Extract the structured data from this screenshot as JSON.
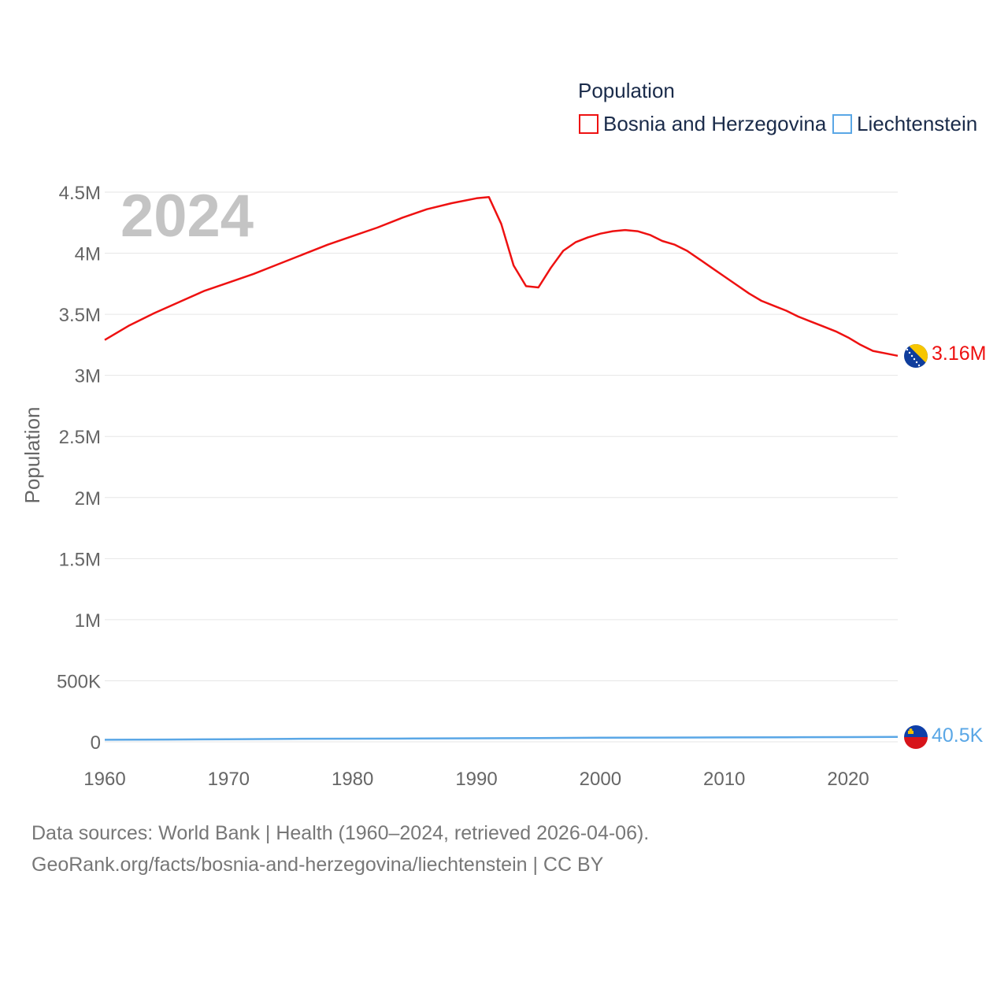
{
  "chart_data": {
    "type": "line",
    "year_label": "2024",
    "ylabel": "Population",
    "xlim": [
      1960,
      2024
    ],
    "ylim": [
      0,
      4500000
    ],
    "x_ticks": [
      1960,
      1970,
      1980,
      1990,
      2000,
      2010,
      2020
    ],
    "y_ticks": [
      {
        "value": 0,
        "label": "0"
      },
      {
        "value": 500000,
        "label": "500K"
      },
      {
        "value": 1000000,
        "label": "1M"
      },
      {
        "value": 1500000,
        "label": "1.5M"
      },
      {
        "value": 2000000,
        "label": "2M"
      },
      {
        "value": 2500000,
        "label": "2.5M"
      },
      {
        "value": 3000000,
        "label": "3M"
      },
      {
        "value": 3500000,
        "label": "3.5M"
      },
      {
        "value": 4000000,
        "label": "4M"
      },
      {
        "value": 4500000,
        "label": "4.5M"
      }
    ],
    "legend_title": "Population",
    "series": [
      {
        "name": "Bosnia and Herzegovina",
        "color": "#ee1111",
        "end_label": "3.16M",
        "flag": "bosnia-flag",
        "x": [
          1960,
          1962,
          1964,
          1966,
          1968,
          1970,
          1972,
          1974,
          1976,
          1978,
          1980,
          1982,
          1984,
          1986,
          1988,
          1990,
          1991,
          1992,
          1993,
          1994,
          1995,
          1996,
          1997,
          1998,
          1999,
          2000,
          2001,
          2002,
          2003,
          2004,
          2005,
          2006,
          2007,
          2008,
          2009,
          2010,
          2011,
          2012,
          2013,
          2014,
          2015,
          2016,
          2017,
          2018,
          2019,
          2020,
          2021,
          2022,
          2023,
          2024
        ],
        "values": [
          3290000,
          3410000,
          3510000,
          3600000,
          3690000,
          3760000,
          3830000,
          3910000,
          3990000,
          4070000,
          4140000,
          4210000,
          4290000,
          4360000,
          4410000,
          4450000,
          4460000,
          4240000,
          3900000,
          3730000,
          3720000,
          3880000,
          4020000,
          4090000,
          4130000,
          4160000,
          4180000,
          4190000,
          4180000,
          4150000,
          4100000,
          4070000,
          4020000,
          3950000,
          3880000,
          3810000,
          3740000,
          3670000,
          3610000,
          3570000,
          3530000,
          3480000,
          3440000,
          3400000,
          3360000,
          3310000,
          3250000,
          3200000,
          3180000,
          3160000
        ]
      },
      {
        "name": "Liechtenstein",
        "color": "#5aa7e6",
        "end_label": "40.5K",
        "flag": "liechtenstein-flag",
        "x": [
          1960,
          1965,
          1970,
          1975,
          1980,
          1985,
          1990,
          1995,
          2000,
          2005,
          2010,
          2015,
          2020,
          2024
        ],
        "values": [
          16500,
          19000,
          21400,
          24300,
          25800,
          27200,
          28800,
          30900,
          33300,
          34900,
          36000,
          37400,
          38800,
          40500
        ]
      }
    ]
  },
  "footer": {
    "line1": "Data sources: World Bank | Health (1960–2024, retrieved 2026-04-06).",
    "line2": "GeoRank.org/facts/bosnia-and-herzegovina/liechtenstein | CC BY"
  }
}
